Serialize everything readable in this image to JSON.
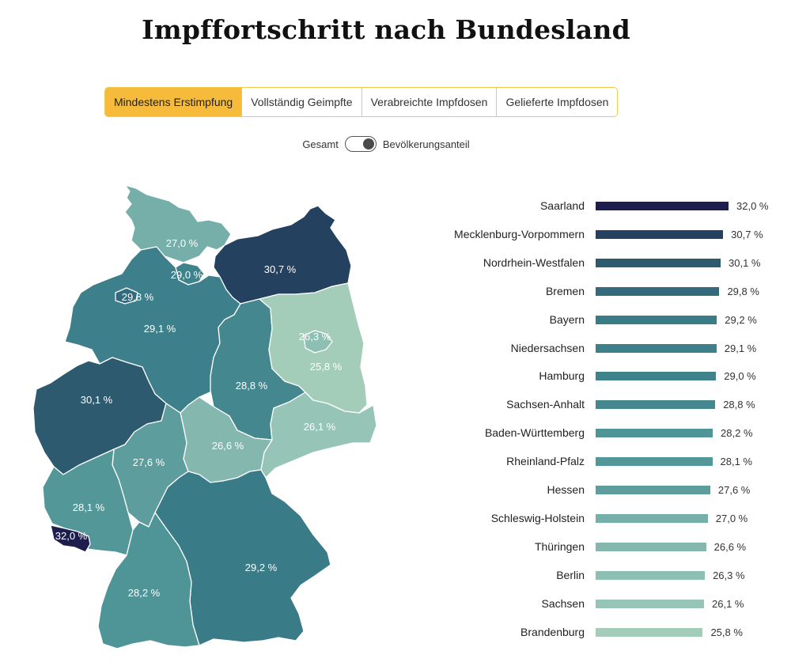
{
  "title": "Impffortschritt nach Bundesland",
  "tabs": [
    {
      "label": "Mindestens Erstimpfung",
      "active": true
    },
    {
      "label": "Vollständig Geimpfte",
      "active": false
    },
    {
      "label": "Verabreichte Impfdosen",
      "active": false
    },
    {
      "label": "Gelieferte Impfdosen",
      "active": false
    }
  ],
  "toggle": {
    "left_label": "Gesamt",
    "right_label": "Bevölkerungsanteil",
    "state": "Bevölkerungsanteil"
  },
  "colors": {
    "accent": "#f6bb3a",
    "scale_high": "#1d1d4e",
    "scale_low": "#a3cdb8"
  },
  "chart_data": {
    "type": "bar",
    "orientation": "horizontal",
    "categories": [
      "Saarland",
      "Mecklenburg-Vorpommern",
      "Nordrhein-Westfalen",
      "Bremen",
      "Bayern",
      "Niedersachsen",
      "Hamburg",
      "Sachsen-Anhalt",
      "Baden-Württemberg",
      "Rheinland-Pfalz",
      "Hessen",
      "Schleswig-Holstein",
      "Thüringen",
      "Berlin",
      "Sachsen",
      "Brandenburg"
    ],
    "values": [
      32.0,
      30.7,
      30.1,
      29.8,
      29.2,
      29.1,
      29.0,
      28.8,
      28.2,
      28.1,
      27.6,
      27.0,
      26.6,
      26.3,
      26.1,
      25.8
    ],
    "value_labels": [
      "32,0 %",
      "30,7 %",
      "30,1 %",
      "29,8 %",
      "29,2 %",
      "29,1 %",
      "29,0 %",
      "28,8 %",
      "28,2 %",
      "28,1 %",
      "27,6 %",
      "27,0 %",
      "26,6 %",
      "26,3 %",
      "26,1 %",
      "25,8 %"
    ],
    "colors": [
      "#1d1d4e",
      "#24415f",
      "#2e5a70",
      "#336a7c",
      "#3a7b88",
      "#3d7f8a",
      "#3e838c",
      "#44878f",
      "#4f9598",
      "#539799",
      "#5e9d9d",
      "#76aea9",
      "#84b8af",
      "#8dbfb3",
      "#96c5b7",
      "#a3cdb8"
    ]
  },
  "map": {
    "labels": [
      {
        "state": "Schleswig-Holstein",
        "text": "27,0 %"
      },
      {
        "state": "Hamburg",
        "text": "29,0 %"
      },
      {
        "state": "Mecklenburg-Vorpommern",
        "text": "30,7 %"
      },
      {
        "state": "Bremen",
        "text": "29,8 %"
      },
      {
        "state": "Niedersachsen",
        "text": "29,1 %"
      },
      {
        "state": "Berlin",
        "text": "26,3 %"
      },
      {
        "state": "Brandenburg",
        "text": "25,8 %"
      },
      {
        "state": "Nordrhein-Westfalen",
        "text": "30,1 %"
      },
      {
        "state": "Sachsen-Anhalt",
        "text": "28,8 %"
      },
      {
        "state": "Sachsen",
        "text": "26,1 %"
      },
      {
        "state": "Thüringen",
        "text": "26,6 %"
      },
      {
        "state": "Hessen",
        "text": "27,6 %"
      },
      {
        "state": "Rheinland-Pfalz",
        "text": "28,1 %"
      },
      {
        "state": "Saarland",
        "text": "32,0 %"
      },
      {
        "state": "Bayern",
        "text": "29,2 %"
      },
      {
        "state": "Baden-Württemberg",
        "text": "28,2 %"
      }
    ]
  }
}
